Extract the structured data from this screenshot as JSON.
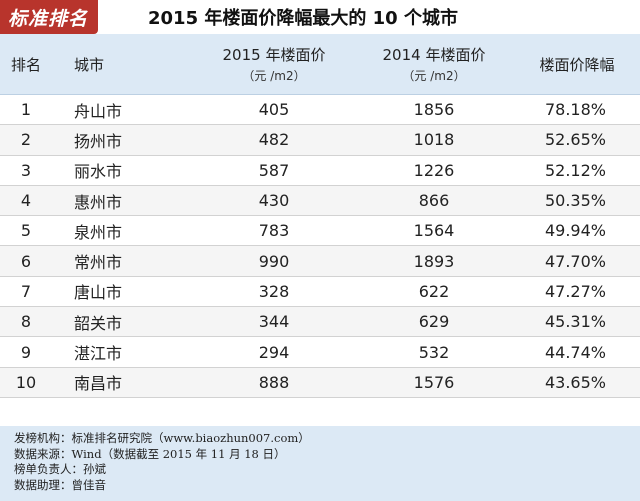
{
  "badge": "标准排名",
  "title": "2015 年楼面价降幅最大的 10 个城市",
  "columns": {
    "rank": "排名",
    "city": "城市",
    "price2015": "2015 年楼面价",
    "price2015_unit": "（元 /m2）",
    "price2014": "2014 年楼面价",
    "price2014_unit": "（元 /m2）",
    "drop": "楼面价降幅"
  },
  "rows": [
    {
      "rank": "1",
      "city": "舟山市",
      "p2015": "405",
      "p2014": "1856",
      "drop": "78.18%"
    },
    {
      "rank": "2",
      "city": "扬州市",
      "p2015": "482",
      "p2014": "1018",
      "drop": "52.65%"
    },
    {
      "rank": "3",
      "city": "丽水市",
      "p2015": "587",
      "p2014": "1226",
      "drop": "52.12%"
    },
    {
      "rank": "4",
      "city": "惠州市",
      "p2015": "430",
      "p2014": "866",
      "drop": "50.35%"
    },
    {
      "rank": "5",
      "city": "泉州市",
      "p2015": "783",
      "p2014": "1564",
      "drop": "49.94%"
    },
    {
      "rank": "6",
      "city": "常州市",
      "p2015": "990",
      "p2014": "1893",
      "drop": "47.70%"
    },
    {
      "rank": "7",
      "city": "唐山市",
      "p2015": "328",
      "p2014": "622",
      "drop": "47.27%"
    },
    {
      "rank": "8",
      "city": "韶关市",
      "p2015": "344",
      "p2014": "629",
      "drop": "45.31%"
    },
    {
      "rank": "9",
      "city": "湛江市",
      "p2015": "294",
      "p2014": "532",
      "drop": "44.74%"
    },
    {
      "rank": "10",
      "city": "南昌市",
      "p2015": "888",
      "p2014": "1576",
      "drop": "43.65%"
    }
  ],
  "footer": {
    "line1": "发榜机构：标准排名研究院（www.biaozhun007.com）",
    "line2": "数据来源：Wind（数据截至 2015 年 11 月 18 日）",
    "line3": "榜单负责人：孙斌",
    "line4": "数据助理：曾佳音"
  },
  "colors": {
    "badge": "#b8342c",
    "header_bg": "#dce9f5",
    "footer_bg": "#dce9f5"
  }
}
